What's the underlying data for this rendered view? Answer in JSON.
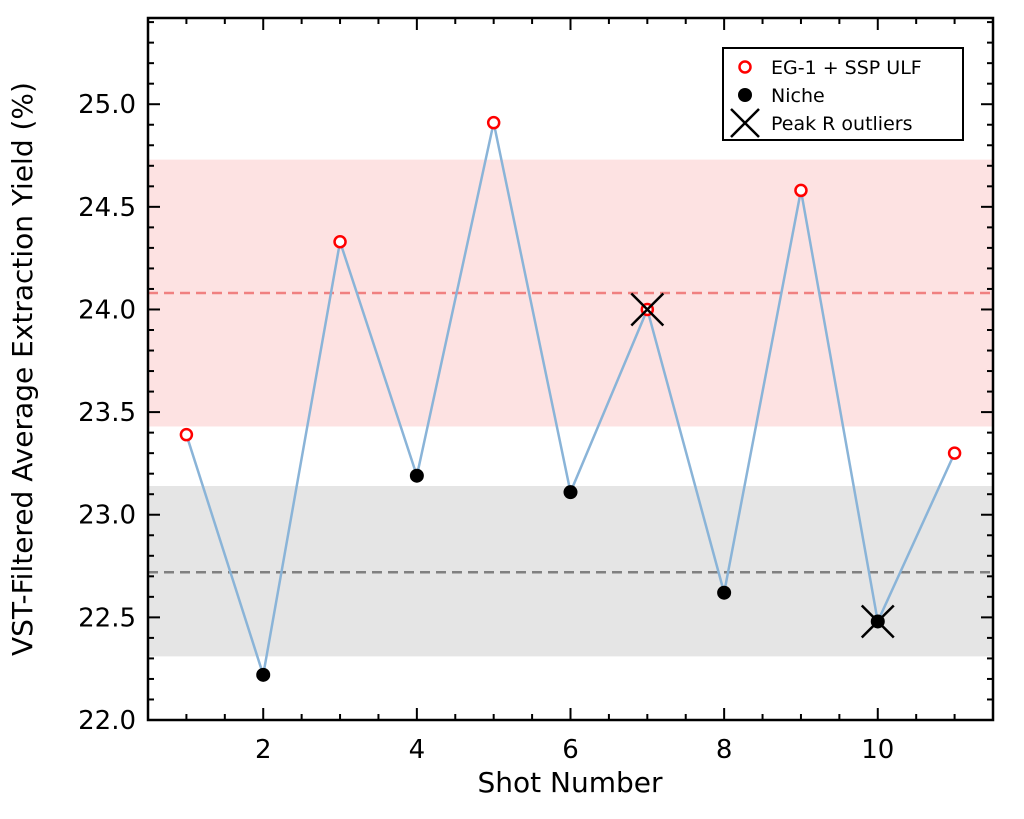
{
  "chart_data": {
    "type": "line",
    "title": "",
    "xlabel": "Shot Number",
    "ylabel": "VST-Filtered Average Extraction Yield (%)",
    "xlim": [
      0.5,
      11.5
    ],
    "ylim": [
      22.0,
      25.42
    ],
    "xticks": [
      2,
      4,
      6,
      8,
      10
    ],
    "yticks": [
      22.0,
      22.5,
      23.0,
      23.5,
      24.0,
      24.5,
      25.0
    ],
    "x_minor_step": 0.5,
    "y_minor_step": 0.1,
    "grid": false,
    "line_color": "#8ab4d8",
    "x": [
      1,
      2,
      3,
      4,
      5,
      6,
      7,
      8,
      9,
      10,
      11
    ],
    "y": [
      23.39,
      22.22,
      24.33,
      23.19,
      24.91,
      23.11,
      24.0,
      22.62,
      24.58,
      22.48,
      23.3
    ],
    "groups": [
      "EG-1 + SSP ULF",
      "Niche",
      "EG-1 + SSP ULF",
      "Niche",
      "EG-1 + SSP ULF",
      "Niche",
      "EG-1 + SSP ULF",
      "Niche",
      "EG-1 + SSP ULF",
      "Niche",
      "EG-1 + SSP ULF"
    ],
    "outliers_x": [
      7,
      10
    ],
    "bands": [
      {
        "name": "EG-1 + SSP ULF",
        "mean": 24.08,
        "low": 23.43,
        "high": 24.73,
        "fill": "#fde2e2",
        "line": "#f08080"
      },
      {
        "name": "Niche",
        "mean": 22.72,
        "low": 22.31,
        "high": 23.14,
        "fill": "#e5e5e5",
        "line": "#808080"
      }
    ],
    "legend": {
      "placement": "top-right",
      "entries": [
        {
          "label": "EG-1 + SSP ULF",
          "marker": "open-circle",
          "color": "#ff0000"
        },
        {
          "label": "Niche",
          "marker": "filled-circle",
          "color": "#000000"
        },
        {
          "label": "Peak R outliers",
          "marker": "x",
          "color": "#000000"
        }
      ]
    }
  }
}
